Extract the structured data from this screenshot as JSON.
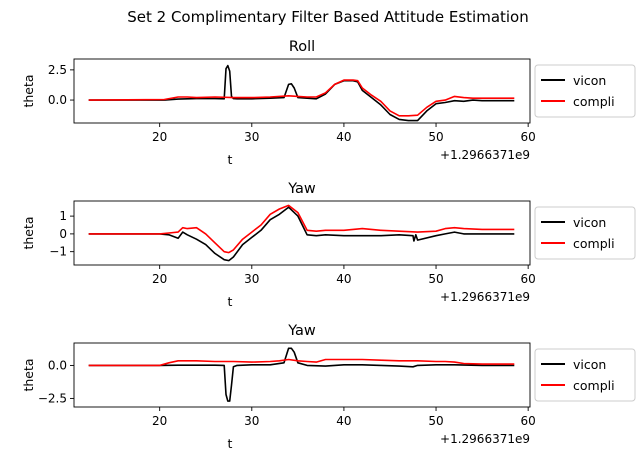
{
  "figure": {
    "suptitle": "Set 2 Complimentary Filter Based Attitude Estimation"
  },
  "colors": {
    "vicon": "#000000",
    "compli": "#ff0000"
  },
  "chart_data": [
    {
      "type": "line",
      "title": "Roll",
      "xlabel": "t",
      "ylabel": "theta",
      "offset_text": "+1.2966371e9",
      "xlim": [
        10.7,
        60.2
      ],
      "ylim": [
        -1.9,
        3.4
      ],
      "xticks": [
        20,
        30,
        40,
        50,
        60
      ],
      "xtick_labels": [
        "20",
        "30",
        "40",
        "50",
        "60"
      ],
      "yticks": [
        2.5,
        0.0
      ],
      "ytick_labels": [
        "2.5",
        "0.0"
      ],
      "legend": "right-outside",
      "series": [
        {
          "name": "vicon",
          "color": "#000000",
          "x": [
            12.3,
            20.5,
            22,
            24,
            26,
            27,
            27.2,
            27.4,
            27.6,
            27.8,
            28,
            28.4,
            30,
            32,
            33.5,
            34,
            34.3,
            34.6,
            35,
            36,
            37,
            38,
            39,
            40,
            41,
            41.5,
            42,
            43,
            44,
            45,
            46,
            47,
            48,
            49,
            50,
            51,
            52,
            53,
            54,
            55,
            58.5
          ],
          "y": [
            0.0,
            0.0,
            0.08,
            0.12,
            0.12,
            0.1,
            2.6,
            2.85,
            2.4,
            0.3,
            0.12,
            0.1,
            0.1,
            0.15,
            0.2,
            1.3,
            1.35,
            1.0,
            0.2,
            0.15,
            0.1,
            0.5,
            1.3,
            1.6,
            1.6,
            1.5,
            0.8,
            0.2,
            -0.4,
            -1.2,
            -1.6,
            -1.7,
            -1.7,
            -0.9,
            -0.3,
            -0.2,
            -0.05,
            -0.1,
            0.0,
            -0.05,
            -0.05
          ]
        },
        {
          "name": "compli",
          "color": "#ff0000",
          "x": [
            12.3,
            20.5,
            22,
            23,
            24,
            26,
            28,
            30,
            32,
            34,
            35,
            36,
            37,
            38,
            39,
            40,
            41,
            41.5,
            42,
            43,
            44,
            45,
            46,
            47,
            48,
            49,
            50,
            51,
            52,
            53,
            54,
            55,
            58.5
          ],
          "y": [
            0.0,
            0.05,
            0.25,
            0.25,
            0.2,
            0.25,
            0.2,
            0.2,
            0.25,
            0.35,
            0.3,
            0.25,
            0.25,
            0.6,
            1.3,
            1.65,
            1.65,
            1.6,
            1.0,
            0.4,
            -0.1,
            -0.9,
            -1.3,
            -1.3,
            -1.25,
            -0.6,
            -0.1,
            0.0,
            0.3,
            0.2,
            0.15,
            0.15,
            0.15
          ]
        }
      ]
    },
    {
      "type": "line",
      "title": "Yaw",
      "xlabel": "t",
      "ylabel": "theta",
      "offset_text": "+1.2966371e9",
      "xlim": [
        10.7,
        60.2
      ],
      "ylim": [
        -1.75,
        1.85
      ],
      "xticks": [
        20,
        30,
        40,
        50,
        60
      ],
      "xtick_labels": [
        "20",
        "30",
        "40",
        "50",
        "60"
      ],
      "yticks": [
        1,
        0,
        -1
      ],
      "ytick_labels": [
        "1",
        "0",
        "−1"
      ],
      "legend": "right-outside",
      "series": [
        {
          "name": "vicon",
          "color": "#000000",
          "x": [
            12.3,
            20,
            21,
            22,
            22.5,
            23,
            24,
            25,
            26,
            27,
            27.5,
            28,
            29,
            30,
            31,
            32,
            33,
            34,
            35,
            36,
            37,
            38,
            40,
            42,
            44,
            46,
            47.5,
            47.6,
            47.8,
            48,
            50,
            51,
            52,
            53,
            55,
            58.5
          ],
          "y": [
            0.0,
            0.0,
            -0.05,
            -0.25,
            0.1,
            -0.05,
            -0.3,
            -0.6,
            -1.1,
            -1.45,
            -1.5,
            -1.3,
            -0.6,
            -0.2,
            0.2,
            0.8,
            1.1,
            1.5,
            1.0,
            -0.05,
            -0.1,
            -0.05,
            -0.1,
            -0.1,
            -0.1,
            -0.05,
            -0.1,
            -0.4,
            -0.05,
            -0.35,
            -0.1,
            0.0,
            0.1,
            0.0,
            0.0,
            0.0
          ]
        },
        {
          "name": "compli",
          "color": "#ff0000",
          "x": [
            12.3,
            20,
            21,
            22,
            22.5,
            23,
            24,
            25,
            26,
            27,
            27.5,
            28,
            29,
            30,
            31,
            32,
            33,
            34,
            35,
            36,
            37,
            38,
            40,
            42,
            44,
            46,
            48,
            50,
            51,
            52,
            53,
            55,
            58.5
          ],
          "y": [
            0.0,
            0.0,
            0.05,
            0.1,
            0.35,
            0.3,
            0.35,
            0.0,
            -0.5,
            -1.0,
            -1.05,
            -0.9,
            -0.3,
            0.1,
            0.5,
            1.1,
            1.4,
            1.6,
            1.2,
            0.2,
            0.15,
            0.2,
            0.2,
            0.3,
            0.2,
            0.15,
            0.1,
            0.15,
            0.3,
            0.35,
            0.3,
            0.25,
            0.25
          ]
        }
      ]
    },
    {
      "type": "line",
      "title": "Yaw",
      "xlabel": "t",
      "ylabel": "theta",
      "offset_text": "+1.2966371e9",
      "xlim": [
        10.7,
        60.2
      ],
      "ylim": [
        -3.15,
        1.7
      ],
      "xticks": [
        20,
        30,
        40,
        50,
        60
      ],
      "xtick_labels": [
        "20",
        "30",
        "40",
        "50",
        "60"
      ],
      "yticks": [
        0.0,
        -2.5
      ],
      "ytick_labels": [
        "0.0",
        "−2.5"
      ],
      "legend": "right-outside",
      "series": [
        {
          "name": "vicon",
          "color": "#000000",
          "x": [
            12.3,
            20,
            22,
            24,
            26,
            27,
            27.2,
            27.4,
            27.6,
            27.8,
            28,
            28.4,
            30,
            32,
            33.5,
            34,
            34.3,
            34.6,
            35,
            36,
            38,
            40,
            42,
            44,
            46,
            47.5,
            48,
            50,
            52,
            55,
            58.5
          ],
          "y": [
            0.0,
            0.0,
            0.02,
            0.02,
            0.02,
            0.0,
            -2.2,
            -2.7,
            -2.7,
            -1.5,
            -0.1,
            0.0,
            0.05,
            0.05,
            0.2,
            1.3,
            1.3,
            1.0,
            0.2,
            0.0,
            -0.05,
            0.05,
            0.05,
            0.0,
            -0.05,
            -0.1,
            0.0,
            0.05,
            0.05,
            0.0,
            0.0
          ]
        },
        {
          "name": "compli",
          "color": "#ff0000",
          "x": [
            12.3,
            20,
            21,
            22,
            24,
            26,
            28,
            30,
            32,
            33,
            34,
            35,
            36,
            37,
            38,
            40,
            42,
            44,
            46,
            48,
            50,
            51,
            52,
            53,
            55,
            58.5
          ],
          "y": [
            0.0,
            0.0,
            0.2,
            0.35,
            0.35,
            0.3,
            0.3,
            0.25,
            0.3,
            0.35,
            0.45,
            0.35,
            0.3,
            0.25,
            0.45,
            0.45,
            0.45,
            0.4,
            0.35,
            0.35,
            0.3,
            0.3,
            0.25,
            0.15,
            0.1,
            0.1
          ]
        }
      ]
    }
  ]
}
